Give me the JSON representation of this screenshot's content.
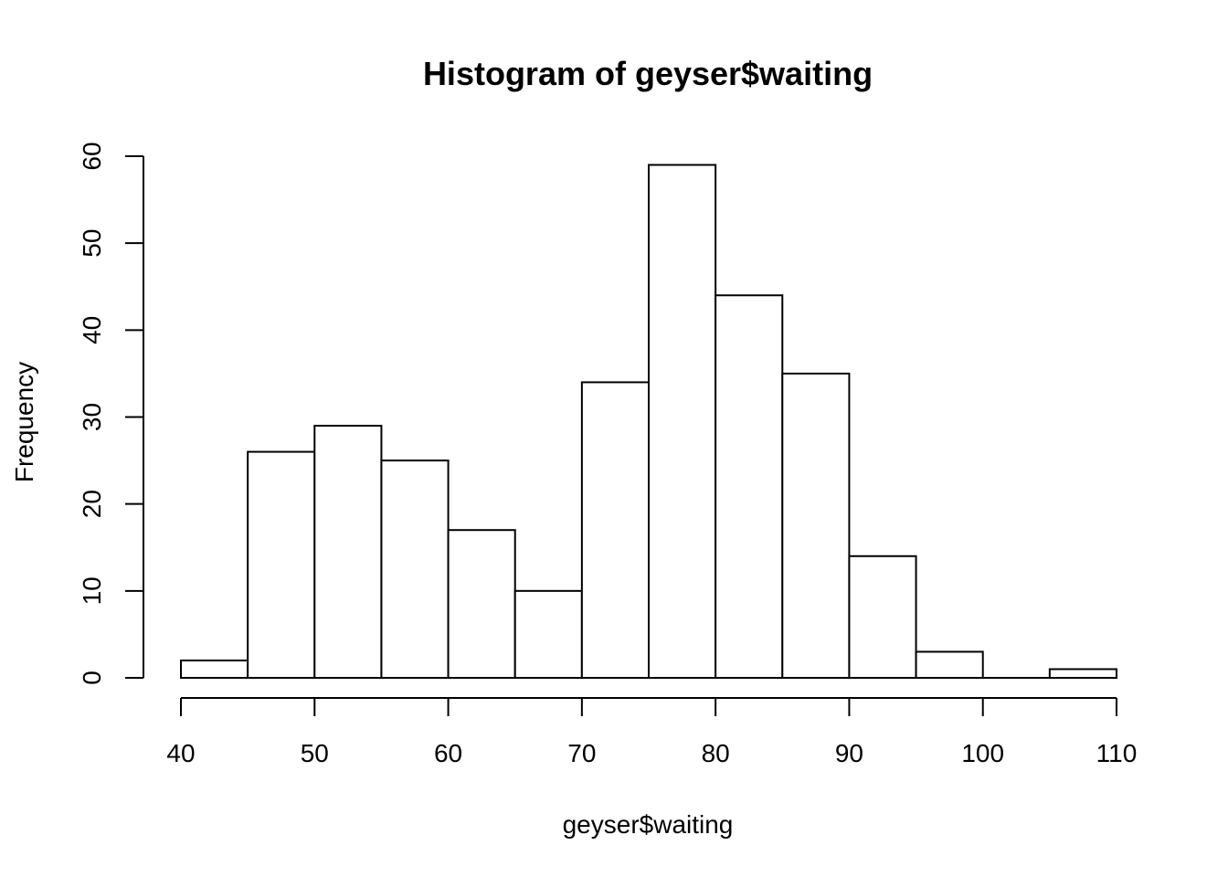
{
  "chart_data": {
    "type": "bar",
    "title": "Histogram of geyser$waiting",
    "xlabel": "geyser$waiting",
    "ylabel": "Frequency",
    "bins": [
      {
        "from": 40,
        "to": 45,
        "count": 2
      },
      {
        "from": 45,
        "to": 50,
        "count": 26
      },
      {
        "from": 50,
        "to": 55,
        "count": 29
      },
      {
        "from": 55,
        "to": 60,
        "count": 25
      },
      {
        "from": 60,
        "to": 65,
        "count": 17
      },
      {
        "from": 65,
        "to": 70,
        "count": 10
      },
      {
        "from": 70,
        "to": 75,
        "count": 34
      },
      {
        "from": 75,
        "to": 80,
        "count": 59
      },
      {
        "from": 80,
        "to": 85,
        "count": 44
      },
      {
        "from": 85,
        "to": 90,
        "count": 35
      },
      {
        "from": 90,
        "to": 95,
        "count": 14
      },
      {
        "from": 95,
        "to": 100,
        "count": 3
      },
      {
        "from": 100,
        "to": 105,
        "count": 0
      },
      {
        "from": 105,
        "to": 110,
        "count": 1
      }
    ],
    "xlim": [
      40,
      110
    ],
    "ylim": [
      0,
      60
    ],
    "x_ticks": [
      "40",
      "50",
      "60",
      "70",
      "80",
      "90",
      "100",
      "110"
    ],
    "y_ticks": [
      "0",
      "10",
      "20",
      "30",
      "40",
      "50",
      "60"
    ],
    "grid": false,
    "legend": "none",
    "colors": {
      "bar_fill": "#ffffff",
      "bar_stroke": "#000000",
      "axis": "#000000"
    }
  }
}
